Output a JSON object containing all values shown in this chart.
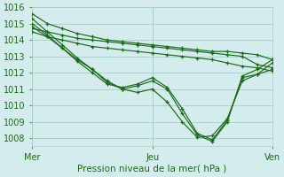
{
  "title": "",
  "xlabel": "Pression niveau de la mer( hPa )",
  "ylabel": "",
  "background_color": "#d4ecec",
  "grid_color": "#aacccc",
  "line_color": "#1a6b1a",
  "marker_color": "#1a6b1a",
  "xlim": [
    0,
    48
  ],
  "ylim": [
    1007.5,
    1016
  ],
  "yticks": [
    1008,
    1009,
    1010,
    1011,
    1012,
    1013,
    1014,
    1015,
    1016
  ],
  "xtick_positions": [
    0,
    24,
    48
  ],
  "xtick_labels": [
    "Mer",
    "Jeu",
    "Ven"
  ],
  "lines": [
    {
      "x": [
        0,
        3,
        6,
        9,
        12,
        15,
        18,
        21,
        24,
        27,
        30,
        33,
        36,
        39,
        42,
        45,
        48
      ],
      "y": [
        1015.6,
        1015.0,
        1014.7,
        1014.4,
        1014.2,
        1014.0,
        1013.9,
        1013.8,
        1013.7,
        1013.6,
        1013.5,
        1013.4,
        1013.3,
        1013.3,
        1013.2,
        1013.1,
        1012.8
      ]
    },
    {
      "x": [
        0,
        3,
        6,
        9,
        12,
        15,
        18,
        21,
        24,
        27,
        30,
        33,
        36,
        39,
        42,
        45,
        48
      ],
      "y": [
        1014.7,
        1014.5,
        1014.3,
        1014.1,
        1014.0,
        1013.9,
        1013.8,
        1013.7,
        1013.6,
        1013.5,
        1013.4,
        1013.3,
        1013.2,
        1013.1,
        1013.0,
        1012.5,
        1012.3
      ]
    },
    {
      "x": [
        0,
        3,
        6,
        9,
        12,
        15,
        18,
        21,
        24,
        27,
        30,
        33,
        36,
        39,
        42,
        45,
        48
      ],
      "y": [
        1014.5,
        1014.2,
        1014.0,
        1013.8,
        1013.6,
        1013.5,
        1013.4,
        1013.3,
        1013.2,
        1013.1,
        1013.0,
        1012.9,
        1012.8,
        1012.6,
        1012.4,
        1012.3,
        1012.1
      ]
    },
    {
      "x": [
        0,
        3,
        6,
        9,
        12,
        15,
        18,
        21,
        24,
        27,
        30,
        33,
        36,
        39,
        42,
        45,
        48
      ],
      "y": [
        1014.8,
        1014.2,
        1013.5,
        1012.8,
        1012.2,
        1011.5,
        1011.0,
        1010.8,
        1011.0,
        1010.2,
        1009.0,
        1008.05,
        1008.15,
        1009.2,
        1011.5,
        1011.9,
        1012.6
      ]
    },
    {
      "x": [
        0,
        3,
        6,
        9,
        12,
        15,
        18,
        21,
        24,
        27,
        30,
        33,
        36,
        39,
        42,
        45,
        48
      ],
      "y": [
        1015.3,
        1014.5,
        1013.7,
        1012.9,
        1012.2,
        1011.4,
        1011.0,
        1011.2,
        1011.5,
        1011.0,
        1009.5,
        1008.2,
        1007.8,
        1009.0,
        1011.8,
        1012.2,
        1012.8
      ]
    },
    {
      "x": [
        0,
        3,
        6,
        9,
        12,
        15,
        18,
        21,
        24,
        27,
        30,
        33,
        36,
        39,
        42,
        45,
        48
      ],
      "y": [
        1015.0,
        1014.3,
        1013.5,
        1012.7,
        1012.0,
        1011.3,
        1011.1,
        1011.3,
        1011.7,
        1011.1,
        1009.8,
        1008.3,
        1007.9,
        1009.1,
        1011.7,
        1011.9,
        1012.2
      ]
    }
  ]
}
